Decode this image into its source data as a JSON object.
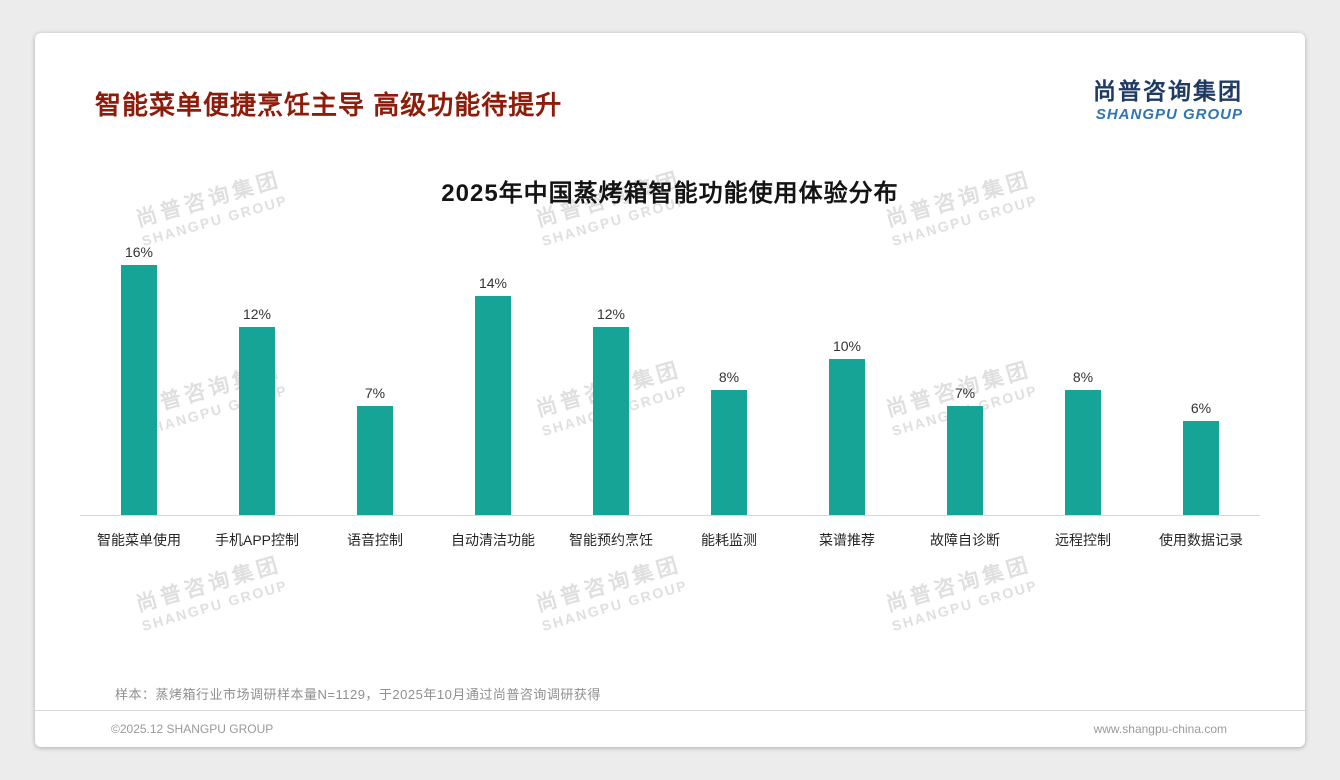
{
  "page": {
    "title": "智能菜单便捷烹饪主导 高级功能待提升",
    "logo": {
      "cn": "尚普咨询集团",
      "en": "SHANGPU GROUP"
    },
    "watermark": {
      "line1": "尚普咨询集团",
      "line2": "SHANGPU GROUP"
    },
    "note": "样本：蒸烤箱行业市场调研样本量N=1129，于2025年10月通过尚普咨询调研获得",
    "footer": {
      "left": "©2025.12 SHANGPU GROUP",
      "right": "www.shangpu-china.com"
    },
    "colors": {
      "title": "#8e1c0a",
      "logo_cn": "#1f3a63",
      "logo_en": "#2e75b6",
      "bar": "#15a495",
      "watermark": "#c6c6c6"
    }
  },
  "chart_data": {
    "type": "bar",
    "title": "2025年中国蒸烤箱智能功能使用体验分布",
    "categories": [
      "智能菜单使用",
      "手机APP控制",
      "语音控制",
      "自动清洁功能",
      "智能预约烹饪",
      "能耗监测",
      "菜谱推荐",
      "故障自诊断",
      "远程控制",
      "使用数据记录"
    ],
    "values": [
      16,
      12,
      7,
      14,
      12,
      8,
      10,
      7,
      8,
      6
    ],
    "value_labels": [
      "16%",
      "12%",
      "7%",
      "14%",
      "12%",
      "8%",
      "10%",
      "7%",
      "8%",
      "6%"
    ],
    "unit": "%",
    "xlabel": "",
    "ylabel": "",
    "ylim": [
      0,
      16
    ],
    "grid": false,
    "legend": "none",
    "bar_color": "#15a495"
  }
}
